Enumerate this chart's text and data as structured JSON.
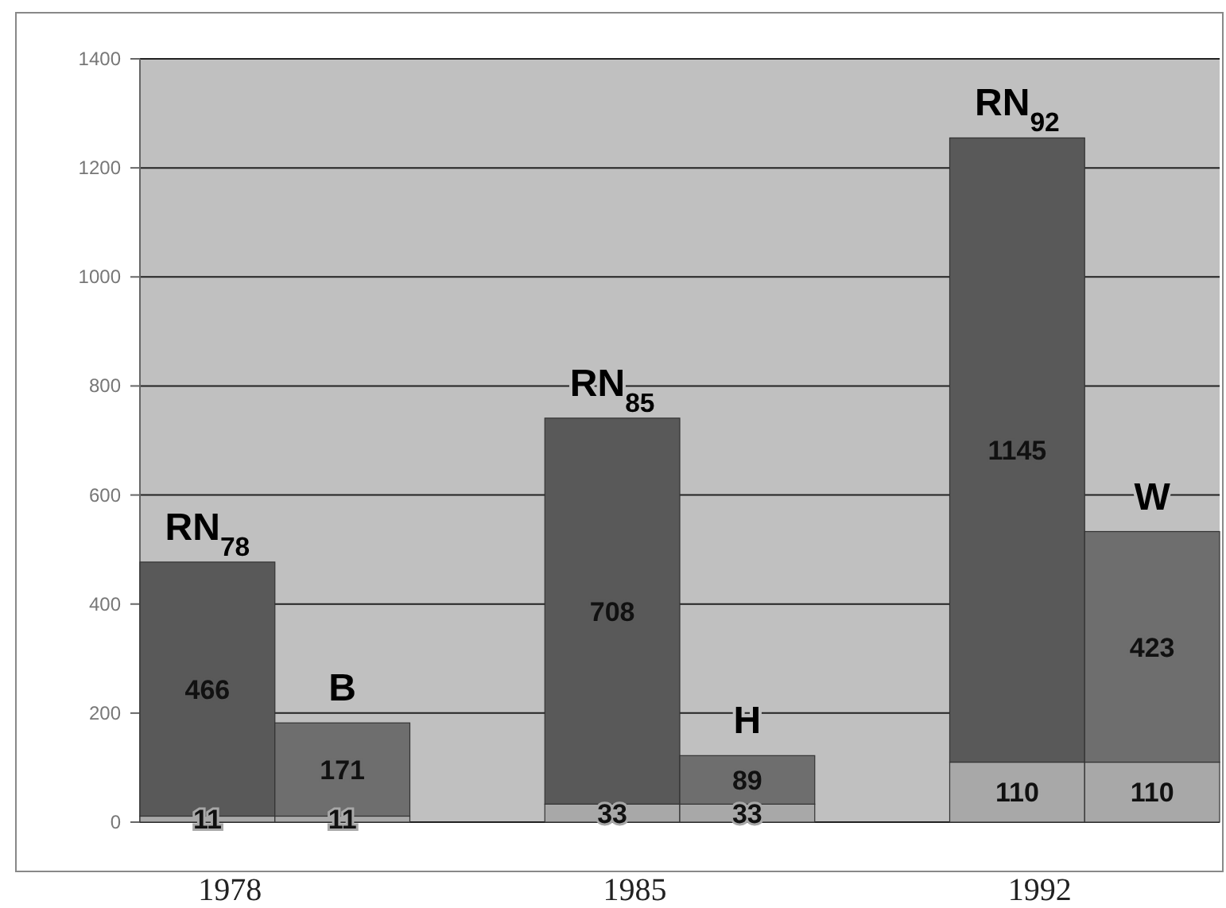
{
  "chart_data": {
    "type": "bar",
    "categories": [
      "1978",
      null,
      "1985",
      null,
      "1992",
      null
    ],
    "series": [
      {
        "color": "#a8a8a8",
        "values": [
          11,
          11,
          33,
          33,
          110,
          110
        ]
      },
      {
        "colors": [
          "#595959",
          "#6e6e6e",
          "#595959",
          "#6e6e6e",
          "#595959",
          "#6e6e6e"
        ],
        "values": [
          466,
          171,
          708,
          89,
          1145,
          423
        ]
      }
    ],
    "stacked": true,
    "data_labels": true,
    "ylim": [
      0,
      1400
    ],
    "yticks": [
      0,
      200,
      400,
      600,
      800,
      1000,
      1200,
      1400
    ],
    "grid": "y",
    "annotations": [
      {
        "text": "RN$_{78}$",
        "x": "1978",
        "y": 477
      },
      {
        "text": "B",
        "y": 182
      },
      {
        "text": "RN$_{85}$",
        "x": "1985",
        "y": 741
      },
      {
        "text": "H",
        "y": 122
      },
      {
        "text": "RN$_{92}$",
        "x": "1992",
        "y": 1255
      },
      {
        "text": "W",
        "y": 533
      }
    ]
  }
}
